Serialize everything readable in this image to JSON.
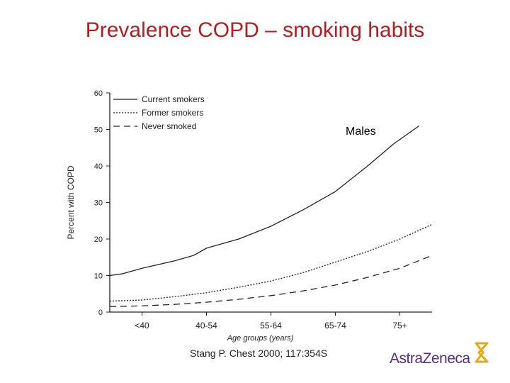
{
  "slide": {
    "title": "Prevalence COPD – smoking habits",
    "citation": "Stang P. Chest 2000; 117:354S",
    "logo_text": "AstraZeneca",
    "title_color": "#b41e22",
    "logo_color": "#5b2a86",
    "logo_mark_color": "#e6a817"
  },
  "chart_data": {
    "type": "line",
    "annotation": "Males",
    "xlabel": "Age groups (years)",
    "ylabel": "Percent with COPD",
    "ylim": [
      0,
      60
    ],
    "yticks": [
      0,
      10,
      20,
      30,
      40,
      50,
      60
    ],
    "xlim": [
      0,
      5
    ],
    "categories": [
      "<40",
      "40-54",
      "55-64",
      "65-74",
      "75+"
    ],
    "category_positions": [
      0.5,
      1.5,
      2.5,
      3.5,
      4.5
    ],
    "legend_position": "top-left",
    "series": [
      {
        "name": "Current smokers",
        "style": "solid",
        "x": [
          0,
          0.2,
          0.5,
          1.0,
          1.3,
          1.5,
          1.8,
          2.0,
          2.5,
          3.0,
          3.5,
          4.0,
          4.4,
          4.8
        ],
        "y": [
          10,
          10.5,
          12,
          14,
          15.5,
          17.5,
          19,
          20,
          23.5,
          28,
          33,
          40,
          46,
          51
        ]
      },
      {
        "name": "Former smokers",
        "style": "dotted",
        "x": [
          0,
          0.5,
          1.0,
          1.5,
          2.0,
          2.5,
          3.0,
          3.5,
          4.0,
          4.5,
          5.0
        ],
        "y": [
          3,
          3.3,
          4.2,
          5.3,
          6.8,
          8.5,
          10.8,
          13.7,
          16.6,
          20,
          24
        ]
      },
      {
        "name": "Never smoked",
        "style": "dashed",
        "x": [
          0,
          0.5,
          1.0,
          1.5,
          2.0,
          2.5,
          3.0,
          3.5,
          4.0,
          4.5,
          5.0
        ],
        "y": [
          1.5,
          1.7,
          2.1,
          2.7,
          3.5,
          4.5,
          5.8,
          7.4,
          9.5,
          12,
          15.5
        ]
      }
    ]
  }
}
